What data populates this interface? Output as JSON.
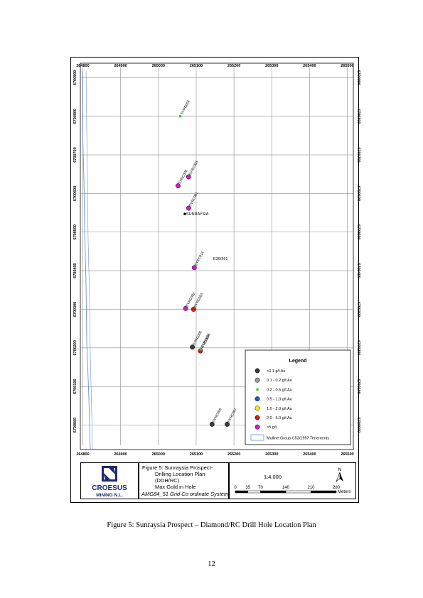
{
  "map": {
    "x_ticks": [
      "264800",
      "264900",
      "265000",
      "265100",
      "265200",
      "265300",
      "265400",
      "265500"
    ],
    "y_ticks": [
      "6700000",
      "6700100",
      "6700200",
      "6700300",
      "6700400",
      "6700500",
      "6700600",
      "6700700",
      "6700800",
      "6700900"
    ],
    "tenement_label": "E30/261",
    "prospect": {
      "label": "SUNRAYSIA",
      "easting": 265070,
      "northing": 6700547
    },
    "holes": [
      {
        "id": "SYRC004",
        "easting": 265058,
        "northing": 6700800,
        "grade": "0.2 - 0.5 g/t Au"
      },
      {
        "id": "SYRC005",
        "easting": 265052,
        "northing": 6700620,
        "grade": ">5 g/t"
      },
      {
        "id": "SYRC003",
        "easting": 265080,
        "northing": 6700643,
        "grade": ">5 g/t"
      },
      {
        "id": "SYRC001",
        "easting": 265080,
        "northing": 6700562,
        "grade": ">5 g/t"
      },
      {
        "id": "SYRC014",
        "easting": 265095,
        "northing": 6700408,
        "grade": ">5 g/t"
      },
      {
        "id": "SYRC002",
        "easting": 265072,
        "northing": 6700302,
        "grade": ">5 g/t"
      },
      {
        "id": "SYRC003",
        "easting": 265093,
        "northing": 6700300,
        "grade": "2.0 - 5.0 g/t Au"
      },
      {
        "id": "SYRC005",
        "easting": 265090,
        "northing": 6700202,
        "grade": "<0.1 g/t Au"
      },
      {
        "id": "SYRC004",
        "easting": 265111,
        "northing": 6700192,
        "grade": "2.0 - 5.0 g/t Au"
      },
      {
        "id": "SYRC006",
        "easting": 265112,
        "northing": 6700196,
        "grade": "0.2 - 0.5 g/t Au"
      },
      {
        "id": "SYRC006",
        "easting": 265142,
        "northing": 6700002,
        "grade": "<0.1 g/t Au"
      },
      {
        "id": "SYRC007",
        "easting": 265182,
        "northing": 6700002,
        "grade": "<0.1 g/t Au"
      }
    ],
    "legend": {
      "title": "Legend",
      "items": [
        {
          "label": "<0.1 g/t Au",
          "color": "#3a3a3a"
        },
        {
          "label": "0.1 - 0.2 g/t Au",
          "color": "#9a9a9a"
        },
        {
          "label": "0.2 - 0.5 g/t Au",
          "color": "#2ecc2e"
        },
        {
          "label": "0.5 - 1.0 g/t Au",
          "color": "#2255cc"
        },
        {
          "label": "1.0 - 2.0 g/t Au",
          "color": "#f0f000"
        },
        {
          "label": "2.0 - 5.0 g/t Au",
          "color": "#d41a1a"
        },
        {
          "label": ">5 g/t",
          "color": "#d21ad2"
        }
      ],
      "tenement_label": "Mulline Group C53/1997 Tenements",
      "tenement_color": "#6e90d8"
    }
  },
  "title_block": {
    "company_name": "CROESUS",
    "company_sub": "MINING N.L.",
    "figure_lines": [
      "Figure 5: Sunraysia Prospect-",
      "Drilling Location Plan",
      "(DDH/RC)",
      "Max Gold in Hole"
    ],
    "coord_system": "AMG84_51 Grid Co ordinate System",
    "scale_text": "1:4,000",
    "north_label": "N",
    "scale_ticks": [
      "0",
      "35",
      "70",
      "140",
      "210",
      "280"
    ],
    "scale_unit": "Meters"
  },
  "caption": "Figure 5: Sunraysia Prospect – Diamond/RC Drill Hole Location Plan",
  "page_number": "12"
}
